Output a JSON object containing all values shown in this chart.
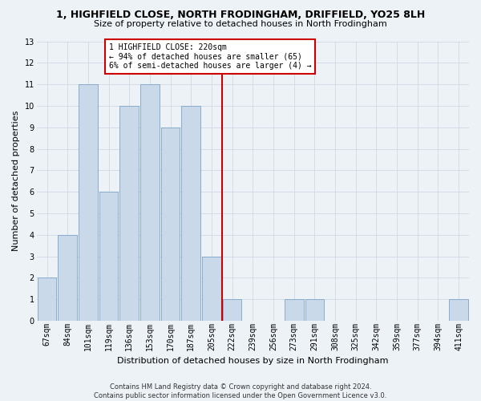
{
  "title1": "1, HIGHFIELD CLOSE, NORTH FRODINGHAM, DRIFFIELD, YO25 8LH",
  "title2": "Size of property relative to detached houses in North Frodingham",
  "xlabel": "Distribution of detached houses by size in North Frodingham",
  "ylabel": "Number of detached properties",
  "footer1": "Contains HM Land Registry data © Crown copyright and database right 2024.",
  "footer2": "Contains public sector information licensed under the Open Government Licence v3.0.",
  "categories": [
    "67sqm",
    "84sqm",
    "101sqm",
    "119sqm",
    "136sqm",
    "153sqm",
    "170sqm",
    "187sqm",
    "205sqm",
    "222sqm",
    "239sqm",
    "256sqm",
    "273sqm",
    "291sqm",
    "308sqm",
    "325sqm",
    "342sqm",
    "359sqm",
    "377sqm",
    "394sqm",
    "411sqm"
  ],
  "values": [
    2,
    4,
    11,
    6,
    10,
    11,
    9,
    10,
    3,
    1,
    0,
    0,
    1,
    1,
    0,
    0,
    0,
    0,
    0,
    0,
    1
  ],
  "bar_color": "#c9d9ea",
  "bar_edge_color": "#7aa4c8",
  "marker_color": "#cc0000",
  "annotation_text": "1 HIGHFIELD CLOSE: 220sqm\n← 94% of detached houses are smaller (65)\n6% of semi-detached houses are larger (4) →",
  "annotation_box_color": "#ffffff",
  "annotation_box_edge": "#cc0000",
  "ylim": [
    0,
    13
  ],
  "yticks": [
    0,
    1,
    2,
    3,
    4,
    5,
    6,
    7,
    8,
    9,
    10,
    11,
    12,
    13
  ],
  "grid_color": "#d0d8e4",
  "bg_color": "#edf2f7",
  "title_fontsize": 9,
  "subtitle_fontsize": 8,
  "ylabel_fontsize": 8,
  "xlabel_fontsize": 8,
  "tick_fontsize": 7,
  "annotation_fontsize": 7,
  "footer_fontsize": 6
}
